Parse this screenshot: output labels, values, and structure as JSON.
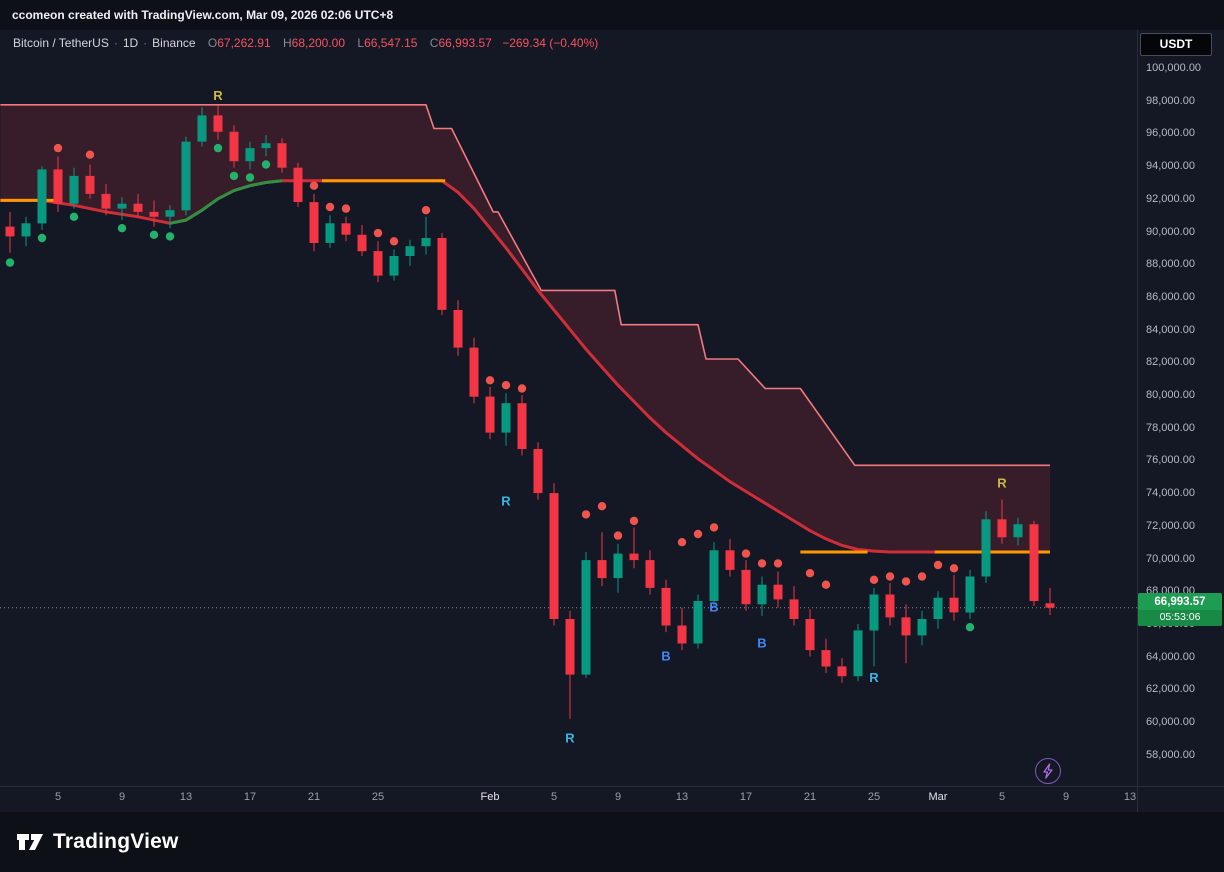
{
  "header": {
    "credit": "ccomeon created with TradingView.com, Mar 09, 2026 02:06 UTC+8"
  },
  "toolbar": {
    "currency": "USDT"
  },
  "legend": {
    "symbol": "Bitcoin / TetherUS",
    "sep": "·",
    "interval": "1D",
    "exchange": "Binance",
    "o_label": "O",
    "o": "67,262.91",
    "h_label": "H",
    "h": "68,200.00",
    "l_label": "L",
    "l": "66,547.15",
    "c_label": "C",
    "c": "66,993.57",
    "change": "−269.34 (−0.40%)"
  },
  "price_tag": {
    "price": "66,993.57",
    "countdown": "05:53:06"
  },
  "footer": {
    "brand": "TradingView"
  },
  "colors": {
    "up": "#089981",
    "down": "#f23645",
    "band_line": "#f2797f",
    "band_fill": "rgba(242,54,69,0.16)",
    "trend_down": "#cf2e39",
    "trend_up": "#2f9143",
    "orange": "#ff9800",
    "dot_up": "#23b26b",
    "dot_down": "#f0544f",
    "marker_yellow": "#c9ba3f",
    "marker_cyan": "#37b6e2",
    "marker_blue": "#4286f5",
    "last_price_line": "#8a9099",
    "tag_bg": "#1e9c51",
    "tag_bg2": "#188a46"
  },
  "chart_data": {
    "type": "candlestick",
    "title": "Bitcoin / TetherUS · 1D · Binance",
    "ylim": [
      57000,
      101000
    ],
    "grid": false,
    "last_price": 66993.57,
    "price_ticks": [
      {
        "v": 100000,
        "label": "100,000.00"
      },
      {
        "v": 98000,
        "label": "98,000.00"
      },
      {
        "v": 96000,
        "label": "96,000.00"
      },
      {
        "v": 94000,
        "label": "94,000.00"
      },
      {
        "v": 92000,
        "label": "92,000.00"
      },
      {
        "v": 90000,
        "label": "90,000.00"
      },
      {
        "v": 88000,
        "label": "88,000.00"
      },
      {
        "v": 86000,
        "label": "86,000.00"
      },
      {
        "v": 84000,
        "label": "84,000.00"
      },
      {
        "v": 82000,
        "label": "82,000.00"
      },
      {
        "v": 80000,
        "label": "80,000.00"
      },
      {
        "v": 78000,
        "label": "78,000.00"
      },
      {
        "v": 76000,
        "label": "76,000.00"
      },
      {
        "v": 74000,
        "label": "74,000.00"
      },
      {
        "v": 72000,
        "label": "72,000.00"
      },
      {
        "v": 70000,
        "label": "70,000.00"
      },
      {
        "v": 68000,
        "label": "68,000.00"
      },
      {
        "v": 66000,
        "label": "66,000.00"
      },
      {
        "v": 64000,
        "label": "64,000.00"
      },
      {
        "v": 62000,
        "label": "62,000.00"
      },
      {
        "v": 60000,
        "label": "60,000.00"
      },
      {
        "v": 58000,
        "label": "58,000.00"
      }
    ],
    "time_ticks": [
      {
        "i": 3,
        "label": "5"
      },
      {
        "i": 7,
        "label": "9"
      },
      {
        "i": 11,
        "label": "13"
      },
      {
        "i": 15,
        "label": "17"
      },
      {
        "i": 19,
        "label": "21"
      },
      {
        "i": 23,
        "label": "25"
      },
      {
        "i": 30,
        "label": "Feb",
        "major": true
      },
      {
        "i": 34,
        "label": "5"
      },
      {
        "i": 38,
        "label": "9"
      },
      {
        "i": 42,
        "label": "13"
      },
      {
        "i": 46,
        "label": "17"
      },
      {
        "i": 50,
        "label": "21"
      },
      {
        "i": 54,
        "label": "25"
      },
      {
        "i": 58,
        "label": "Mar",
        "major": true
      },
      {
        "i": 62,
        "label": "5"
      },
      {
        "i": 66,
        "label": "9"
      },
      {
        "i": 70,
        "label": "13"
      }
    ],
    "candles": [
      [
        90300,
        91200,
        88700,
        89700
      ],
      [
        89700,
        90900,
        89100,
        90500
      ],
      [
        90500,
        94000,
        90100,
        93800
      ],
      [
        93800,
        94600,
        91200,
        91700
      ],
      [
        91700,
        93900,
        91400,
        93400
      ],
      [
        93400,
        94100,
        92000,
        92300
      ],
      [
        92300,
        92900,
        91000,
        91400
      ],
      [
        91400,
        92100,
        90700,
        91700
      ],
      [
        91700,
        92300,
        90900,
        91200
      ],
      [
        91200,
        91900,
        90300,
        90900
      ],
      [
        90900,
        91600,
        90200,
        91300
      ],
      [
        91300,
        95800,
        91000,
        95500
      ],
      [
        95500,
        97600,
        95200,
        97100
      ],
      [
        97100,
        97700,
        95600,
        96100
      ],
      [
        96100,
        96500,
        93900,
        94300
      ],
      [
        94300,
        95500,
        93800,
        95100
      ],
      [
        95100,
        95900,
        94600,
        95400
      ],
      [
        95400,
        95700,
        93600,
        93900
      ],
      [
        93900,
        94200,
        91500,
        91800
      ],
      [
        91800,
        92300,
        88800,
        89300
      ],
      [
        89300,
        91000,
        89000,
        90500
      ],
      [
        90500,
        90900,
        89400,
        89800
      ],
      [
        89800,
        90400,
        88500,
        88800
      ],
      [
        88800,
        89400,
        86900,
        87300
      ],
      [
        87300,
        88900,
        87000,
        88500
      ],
      [
        88500,
        89500,
        87900,
        89100
      ],
      [
        89100,
        90900,
        88600,
        89600
      ],
      [
        89600,
        89900,
        84900,
        85200
      ],
      [
        85200,
        85800,
        82400,
        82900
      ],
      [
        82900,
        83500,
        79500,
        79900
      ],
      [
        79900,
        80500,
        77300,
        77700
      ],
      [
        77700,
        80100,
        76900,
        79500
      ],
      [
        79500,
        80000,
        76300,
        76700
      ],
      [
        76700,
        77100,
        73600,
        74000
      ],
      [
        74000,
        74600,
        65900,
        66300
      ],
      [
        66300,
        66800,
        60200,
        62900
      ],
      [
        62900,
        70400,
        62700,
        69900
      ],
      [
        69900,
        71600,
        68300,
        68800
      ],
      [
        68800,
        70900,
        67900,
        70300
      ],
      [
        70300,
        71900,
        69400,
        69900
      ],
      [
        69900,
        70500,
        67800,
        68200
      ],
      [
        68200,
        68700,
        65500,
        65900
      ],
      [
        65900,
        67000,
        64400,
        64800
      ],
      [
        64800,
        67800,
        64500,
        67400
      ],
      [
        67400,
        71000,
        67000,
        70500
      ],
      [
        70500,
        71200,
        68900,
        69300
      ],
      [
        69300,
        69900,
        66800,
        67200
      ],
      [
        67200,
        68900,
        66500,
        68400
      ],
      [
        68400,
        69200,
        67000,
        67500
      ],
      [
        67500,
        68300,
        65900,
        66300
      ],
      [
        66300,
        66900,
        64000,
        64400
      ],
      [
        64400,
        65100,
        63000,
        63400
      ],
      [
        63400,
        63900,
        62400,
        62800
      ],
      [
        62800,
        66000,
        62500,
        65600
      ],
      [
        65600,
        68200,
        63400,
        67800
      ],
      [
        67800,
        68500,
        65900,
        66400
      ],
      [
        66400,
        67200,
        63600,
        65300
      ],
      [
        65300,
        66800,
        64700,
        66300
      ],
      [
        66300,
        68000,
        65700,
        67600
      ],
      [
        67600,
        69000,
        66200,
        66700
      ],
      [
        66700,
        69300,
        66300,
        68900
      ],
      [
        68900,
        72900,
        68500,
        72400
      ],
      [
        72400,
        73600,
        70900,
        71300
      ],
      [
        71300,
        72500,
        70800,
        72100
      ],
      [
        72100,
        72300,
        67100,
        67400
      ],
      [
        67262.91,
        68200,
        66547.15,
        66993.57
      ]
    ],
    "band_upper": [
      [
        -0.6,
        97750
      ],
      [
        26,
        97750
      ],
      [
        26.5,
        96300
      ],
      [
        27.6,
        96300
      ],
      [
        30.2,
        91200
      ],
      [
        30.5,
        91200
      ],
      [
        33.2,
        86400
      ],
      [
        37.8,
        86400
      ],
      [
        38.2,
        84300
      ],
      [
        43,
        84300
      ],
      [
        43.5,
        82200
      ],
      [
        45.5,
        82200
      ],
      [
        47.2,
        80400
      ],
      [
        49.4,
        80400
      ],
      [
        52.8,
        75700
      ],
      [
        65,
        75700
      ]
    ],
    "midline": [
      [
        -0.6,
        91900
      ],
      [
        2,
        91900
      ],
      [
        4,
        91600
      ],
      [
        6,
        91200
      ],
      [
        8,
        90900
      ],
      [
        10,
        90500
      ],
      [
        11,
        90700
      ],
      [
        12,
        91300
      ],
      [
        13,
        92000
      ],
      [
        14,
        92500
      ],
      [
        15,
        92800
      ],
      [
        16,
        93000
      ],
      [
        17,
        93100
      ],
      [
        27,
        93100
      ],
      [
        28,
        92400
      ],
      [
        29,
        91400
      ],
      [
        30,
        90200
      ],
      [
        31,
        89000
      ],
      [
        32,
        87700
      ],
      [
        33,
        86400
      ],
      [
        34,
        85200
      ],
      [
        35,
        84000
      ],
      [
        36,
        82800
      ],
      [
        37,
        81700
      ],
      [
        38,
        80600
      ],
      [
        39,
        79600
      ],
      [
        40,
        78600
      ],
      [
        41,
        77700
      ],
      [
        42,
        76900
      ],
      [
        43,
        76100
      ],
      [
        44,
        75400
      ],
      [
        45,
        74700
      ],
      [
        46,
        74100
      ],
      [
        47,
        73500
      ],
      [
        48,
        72900
      ],
      [
        49,
        72300
      ],
      [
        50,
        71700
      ],
      [
        51,
        71200
      ],
      [
        52,
        70800
      ],
      [
        53,
        70550
      ],
      [
        54,
        70450
      ],
      [
        55,
        70400
      ],
      [
        65,
        70400
      ]
    ],
    "midline_green_range": [
      10,
      17
    ],
    "orange_segments": [
      {
        "from": -0.6,
        "to": 3,
        "price": 91900
      },
      {
        "from": 19.5,
        "to": 27.2,
        "price": 93100
      },
      {
        "from": 49.4,
        "to": 53.6,
        "price": 70400
      },
      {
        "from": 57.8,
        "to": 65,
        "price": 70400
      }
    ],
    "dots": [
      [
        0,
        88100,
        "g"
      ],
      [
        2,
        89600,
        "g"
      ],
      [
        4,
        90900,
        "g"
      ],
      [
        7,
        90200,
        "g"
      ],
      [
        9,
        89800,
        "g"
      ],
      [
        10,
        89700,
        "g"
      ],
      [
        13,
        95100,
        "g"
      ],
      [
        14,
        93400,
        "g"
      ],
      [
        15,
        93300,
        "g"
      ],
      [
        16,
        94100,
        "g"
      ],
      [
        60,
        65800,
        "g"
      ],
      [
        3,
        95100,
        "r"
      ],
      [
        5,
        94700,
        "r"
      ],
      [
        19,
        92800,
        "r"
      ],
      [
        20,
        91500,
        "r"
      ],
      [
        21,
        91400,
        "r"
      ],
      [
        23,
        89900,
        "r"
      ],
      [
        24,
        89400,
        "r"
      ],
      [
        26,
        91300,
        "r"
      ],
      [
        30,
        80900,
        "r"
      ],
      [
        31,
        80600,
        "r"
      ],
      [
        32,
        80400,
        "r"
      ],
      [
        36,
        72700,
        "r"
      ],
      [
        37,
        73200,
        "r"
      ],
      [
        38,
        71400,
        "r"
      ],
      [
        39,
        72300,
        "r"
      ],
      [
        42,
        71000,
        "r"
      ],
      [
        43,
        71500,
        "r"
      ],
      [
        44,
        71900,
        "r"
      ],
      [
        46,
        70300,
        "r"
      ],
      [
        47,
        69700,
        "r"
      ],
      [
        48,
        69700,
        "r"
      ],
      [
        50,
        69100,
        "r"
      ],
      [
        51,
        68400,
        "r"
      ],
      [
        54,
        68700,
        "r"
      ],
      [
        55,
        68900,
        "r"
      ],
      [
        56,
        68600,
        "r"
      ],
      [
        57,
        68900,
        "r"
      ],
      [
        58,
        69600,
        "r"
      ],
      [
        59,
        69400,
        "r"
      ]
    ],
    "markers": [
      {
        "i": 13,
        "p": 98300,
        "t": "R",
        "k": "yellow"
      },
      {
        "i": 31,
        "p": 73500,
        "t": "R",
        "k": "cyan"
      },
      {
        "i": 35,
        "p": 59000,
        "t": "R",
        "k": "cyan"
      },
      {
        "i": 41,
        "p": 64000,
        "t": "B",
        "k": "blue"
      },
      {
        "i": 44,
        "p": 67000,
        "t": "B",
        "k": "blue"
      },
      {
        "i": 47,
        "p": 64800,
        "t": "B",
        "k": "blue"
      },
      {
        "i": 54,
        "p": 62700,
        "t": "R",
        "k": "cyan"
      },
      {
        "i": 62,
        "p": 74600,
        "t": "R",
        "k": "yellow"
      }
    ]
  }
}
